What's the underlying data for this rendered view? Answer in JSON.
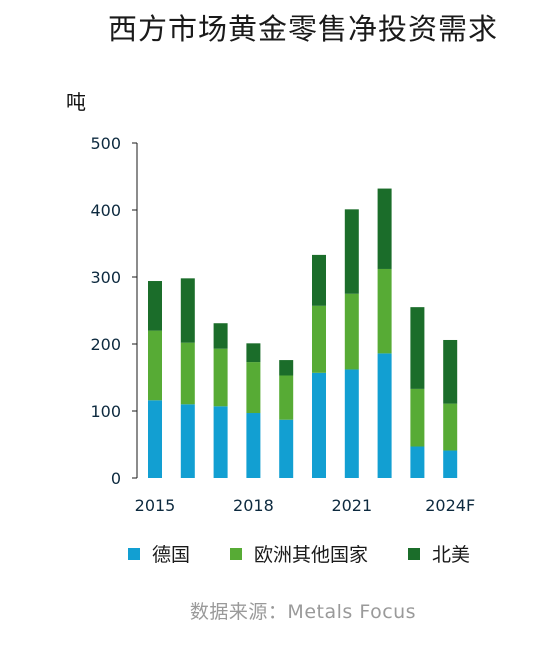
{
  "chart_data": {
    "type": "bar",
    "stacked": true,
    "title": "西方市场黄金零售净投资需求",
    "ylabel": "吨",
    "ylim": [
      0,
      500
    ],
    "yticks": [
      0,
      100,
      200,
      300,
      400,
      500
    ],
    "categories": [
      "2015",
      "2016",
      "2017",
      "2018",
      "2019",
      "2020",
      "2021",
      "2022",
      "2023",
      "2024F"
    ],
    "x_tick_labels": [
      "2015",
      "",
      "",
      "2018",
      "",
      "",
      "2021",
      "",
      "",
      "2024F"
    ],
    "series": [
      {
        "name": "德国",
        "color": "#129fd2",
        "values": [
          116,
          110,
          107,
          97,
          87,
          157,
          162,
          186,
          47,
          41
        ]
      },
      {
        "name": "欧洲其他国家",
        "color": "#57ab35",
        "values": [
          104,
          92,
          86,
          76,
          66,
          100,
          113,
          126,
          86,
          70
        ]
      },
      {
        "name": "北美",
        "color": "#1b6d2a",
        "values": [
          74,
          96,
          38,
          28,
          23,
          76,
          126,
          120,
          122,
          95
        ]
      }
    ],
    "source": "数据来源：Metals Focus",
    "grid": false,
    "legend_position": "bottom"
  }
}
